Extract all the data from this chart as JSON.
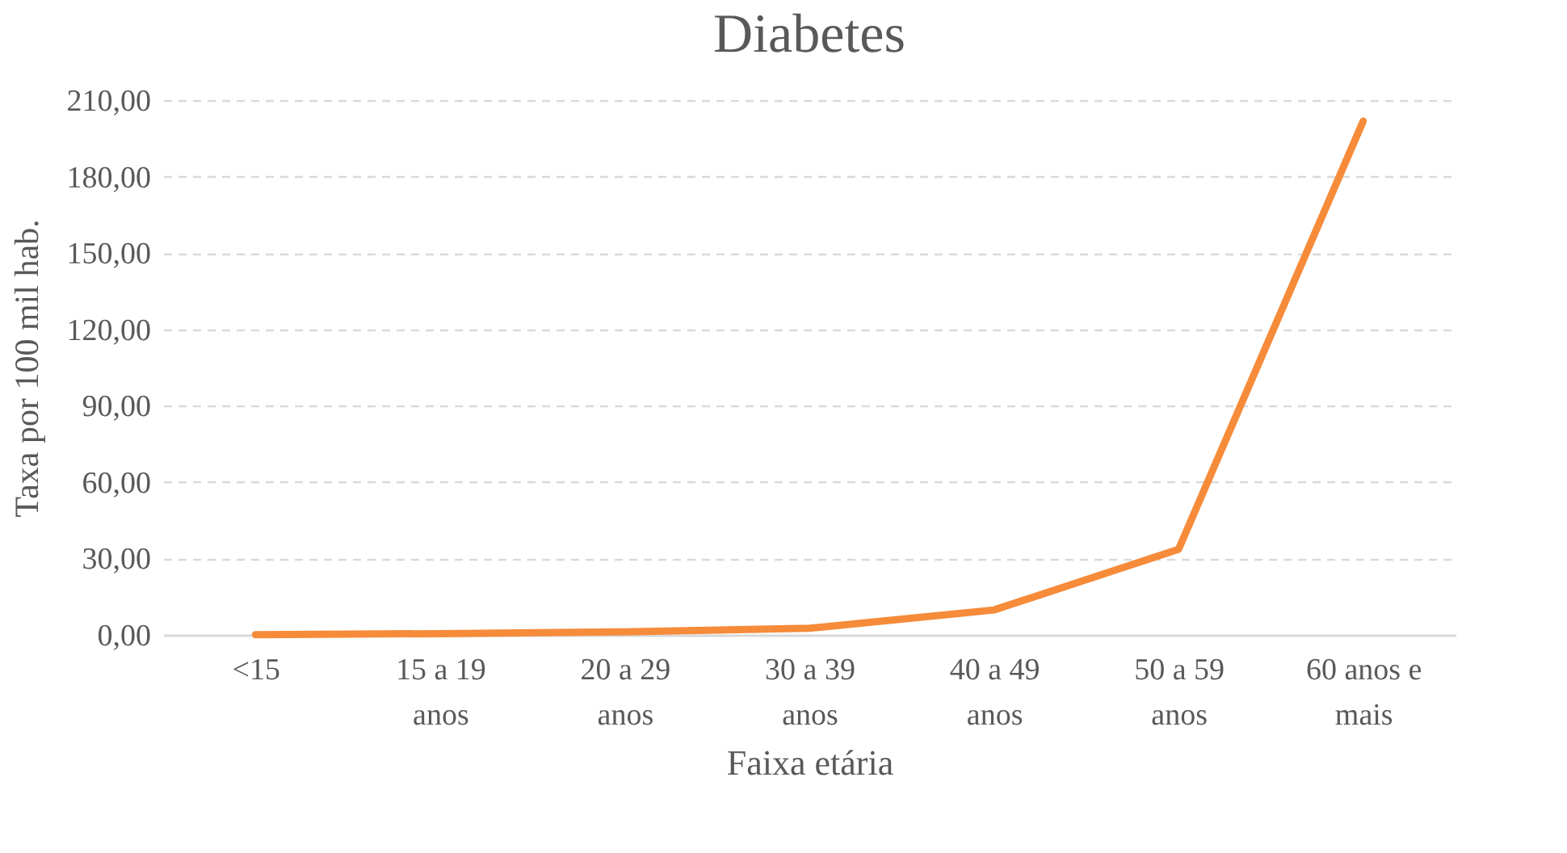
{
  "chart_data": {
    "type": "line",
    "title": "Diabetes",
    "xlabel": "Faixa etária",
    "ylabel": "Taxa por 100 mil hab.",
    "categories": [
      "<15",
      "15 a 19 anos",
      "20 a 29 anos",
      "30 a 39 anos",
      "40 a 49 anos",
      "50 a 59 anos",
      "60 anos e mais"
    ],
    "series": [
      {
        "color": "#f68b3a",
        "values": [
          0.1,
          0.5,
          1.2,
          2.6,
          9.8,
          33.6,
          201.8
        ]
      }
    ],
    "ylim": [
      0,
      210
    ],
    "yticks": [
      {
        "value": 0,
        "label": "0,00"
      },
      {
        "value": 30,
        "label": "30,00"
      },
      {
        "value": 60,
        "label": "60,00"
      },
      {
        "value": 90,
        "label": "90,00"
      },
      {
        "value": 120,
        "label": "120,00"
      },
      {
        "value": 150,
        "label": "150,00"
      },
      {
        "value": 180,
        "label": "180,00"
      },
      {
        "value": 210,
        "label": "210,00"
      }
    ],
    "grid": "y",
    "marker": "none",
    "line_style": "solid"
  }
}
